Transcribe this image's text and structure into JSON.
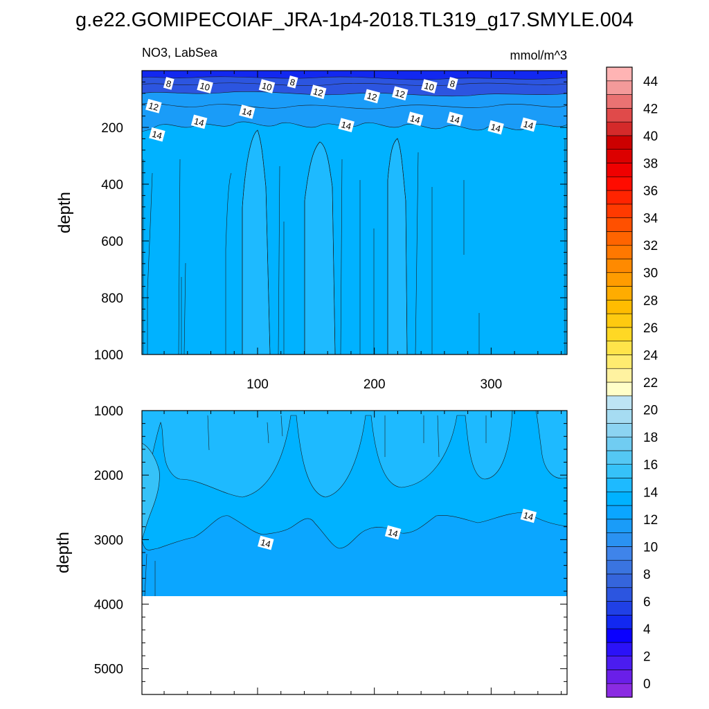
{
  "title": "g.e22.GOMIPECOIAF_JRA-1p4-2018.TL319_g17.SMYLE.004",
  "panel_left_label": "NO3, LabSea",
  "panel_right_label": "mmol/m^3",
  "chart_data": [
    {
      "type": "heatmap",
      "panel": "upper",
      "variable": "NO3",
      "region": "LabSea",
      "units": "mmol/m^3",
      "ylabel": "depth",
      "xlabel": "",
      "xlim": [
        1,
        365
      ],
      "ylim": [
        1000,
        0
      ],
      "x_ticks": [
        100,
        200,
        300
      ],
      "y_ticks": [
        200,
        400,
        600,
        800,
        1000
      ],
      "contour_labels": [
        {
          "value": "8",
          "x": 24,
          "depth": 45
        },
        {
          "value": "10",
          "x": 55,
          "depth": 55
        },
        {
          "value": "10",
          "x": 108,
          "depth": 55
        },
        {
          "value": "8",
          "x": 130,
          "depth": 40
        },
        {
          "value": "12",
          "x": 152,
          "depth": 75
        },
        {
          "value": "12",
          "x": 198,
          "depth": 90
        },
        {
          "value": "12",
          "x": 222,
          "depth": 80
        },
        {
          "value": "10",
          "x": 247,
          "depth": 55
        },
        {
          "value": "8",
          "x": 267,
          "depth": 45
        },
        {
          "value": "12",
          "x": 11,
          "depth": 125
        },
        {
          "value": "14",
          "x": 50,
          "depth": 180
        },
        {
          "value": "14",
          "x": 91,
          "depth": 145
        },
        {
          "value": "14",
          "x": 176,
          "depth": 192
        },
        {
          "value": "14",
          "x": 235,
          "depth": 170
        },
        {
          "value": "14",
          "x": 269,
          "depth": 170
        },
        {
          "value": "14",
          "x": 304,
          "depth": 200
        },
        {
          "value": "14",
          "x": 332,
          "depth": 190
        },
        {
          "value": "14",
          "x": 14,
          "depth": 225
        }
      ]
    },
    {
      "type": "heatmap",
      "panel": "lower",
      "variable": "NO3",
      "units": "mmol/m^3",
      "ylabel": "depth",
      "xlabel": "",
      "xlim": [
        1,
        365
      ],
      "ylim": [
        5400,
        1000
      ],
      "x_ticks": [
        100,
        200,
        300
      ],
      "y_ticks": [
        1000,
        2000,
        3000,
        4000,
        5000
      ],
      "bottom_depth": 3850,
      "contour_labels": [
        {
          "value": "14",
          "x": 107,
          "depth": 3050
        },
        {
          "value": "14",
          "x": 216,
          "depth": 2890
        },
        {
          "value": "14",
          "x": 332,
          "depth": 2630
        }
      ]
    }
  ],
  "colorbar": {
    "labels": [
      "0",
      "2",
      "4",
      "6",
      "8",
      "10",
      "12",
      "14",
      "16",
      "18",
      "20",
      "22",
      "24",
      "26",
      "28",
      "30",
      "32",
      "34",
      "36",
      "38",
      "40",
      "42",
      "44"
    ],
    "colors": [
      "#8a2be2",
      "#6a1fe8",
      "#4b1cf0",
      "#2b12f8",
      "#0a00ff",
      "#1228f0",
      "#2040e6",
      "#2c55e0",
      "#3565dc",
      "#3a74e0",
      "#3f84ea",
      "#2a92f2",
      "#1a9cf8",
      "#0ba6ff",
      "#00b2ff",
      "#1ebaff",
      "#36c2f8",
      "#54c8f4",
      "#70ccf2",
      "#8cd4f2",
      "#a6dcf2",
      "#bde4f4",
      "#ffffc8",
      "#fff2a0",
      "#ffec70",
      "#ffe44a",
      "#ffd824",
      "#ffca10",
      "#ffbc00",
      "#ffac00",
      "#ff9c00",
      "#ff8a00",
      "#ff7800",
      "#ff6400",
      "#ff5000",
      "#ff3a00",
      "#ff2400",
      "#ff0c00",
      "#f00000",
      "#dc0000",
      "#cc0000",
      "#d42a2a",
      "#e04a4a",
      "#ea7272",
      "#f49a9a",
      "#ffb4b4"
    ]
  }
}
